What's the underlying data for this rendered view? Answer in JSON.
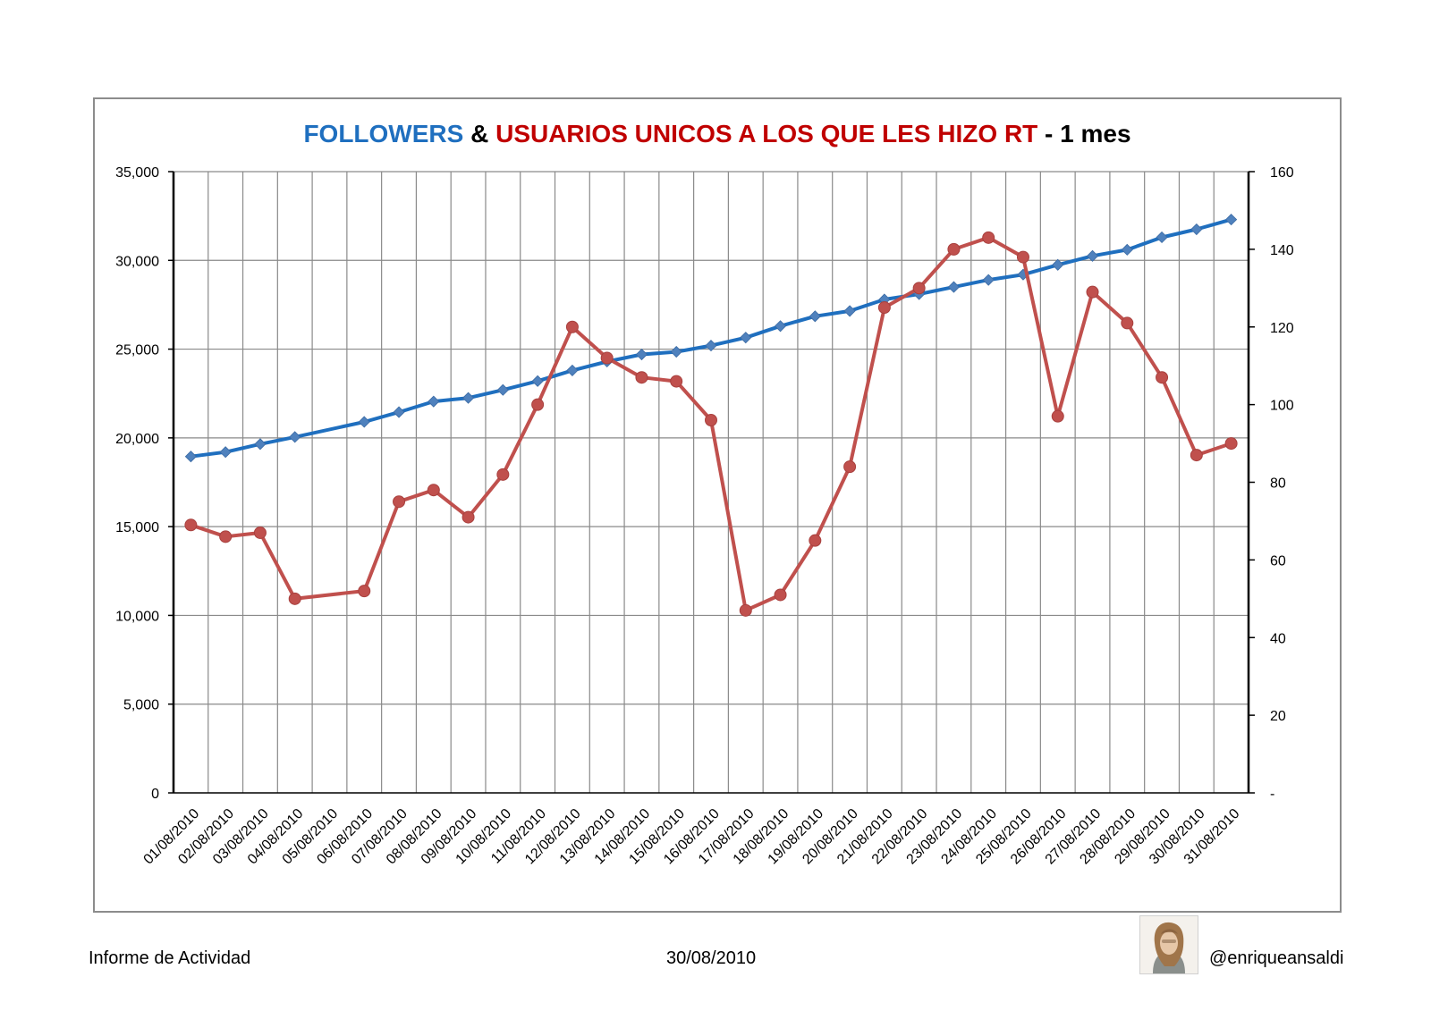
{
  "chart_data": {
    "type": "line",
    "title": {
      "part1": "FOLLOWERS",
      "part2": " & ",
      "part3": "USUARIOS UNICOS A LOS QUE LES HIZO RT",
      "part4": " - 1 mes"
    },
    "title_colors": {
      "part1": "#1f6fbf",
      "part2": "#000000",
      "part3": "#c00000",
      "part4": "#000000"
    },
    "categories": [
      "01/08/2010",
      "02/08/2010",
      "03/08/2010",
      "04/08/2010",
      "05/08/2010",
      "06/08/2010",
      "07/08/2010",
      "08/08/2010",
      "09/08/2010",
      "10/08/2010",
      "11/08/2010",
      "12/08/2010",
      "13/08/2010",
      "14/08/2010",
      "15/08/2010",
      "16/08/2010",
      "17/08/2010",
      "18/08/2010",
      "19/08/2010",
      "20/08/2010",
      "21/08/2010",
      "22/08/2010",
      "23/08/2010",
      "24/08/2010",
      "25/08/2010",
      "26/08/2010",
      "27/08/2010",
      "28/08/2010",
      "29/08/2010",
      "30/08/2010",
      "31/08/2010"
    ],
    "y_left": {
      "ylim": [
        0,
        35000
      ],
      "ticks": [
        0,
        5000,
        10000,
        15000,
        20000,
        25000,
        30000,
        35000
      ],
      "tick_labels": [
        "0",
        "5,000",
        "10,000",
        "15,000",
        "20,000",
        "25,000",
        "30,000",
        "35,000"
      ]
    },
    "y_right": {
      "ylim": [
        0,
        160
      ],
      "ticks": [
        0,
        20,
        40,
        60,
        80,
        100,
        120,
        140,
        160
      ],
      "tick_labels": [
        "-",
        "20",
        "40",
        "60",
        "80",
        "100",
        "120",
        "140",
        "160"
      ]
    },
    "grid": true,
    "series": [
      {
        "axis": "left",
        "color": "#1f6fbf",
        "marker_color": "#4f81bd",
        "marker": "diamond",
        "values": [
          18950,
          19200,
          19650,
          20050,
          null,
          20900,
          21450,
          22050,
          22250,
          22700,
          23200,
          23800,
          24300,
          24700,
          24850,
          25200,
          25650,
          26300,
          26850,
          27150,
          27800,
          28100,
          28500,
          28900,
          29200,
          29750,
          30250,
          30600,
          31300,
          31750,
          32300
        ]
      },
      {
        "axis": "right",
        "color": "#c0504d",
        "marker_color": "#c0504d",
        "marker": "circle",
        "values": [
          69,
          66,
          67,
          50,
          null,
          52,
          75,
          78,
          71,
          82,
          100,
          120,
          112,
          107,
          106,
          96,
          47,
          51,
          65,
          84,
          125,
          130,
          140,
          143,
          138,
          97,
          129,
          121,
          107,
          87,
          90
        ]
      }
    ]
  },
  "footer": {
    "left": "Informe de Actividad",
    "center": "30/08/2010",
    "handle": "@enriqueansaldi"
  },
  "avatar_icon": "user-photo"
}
